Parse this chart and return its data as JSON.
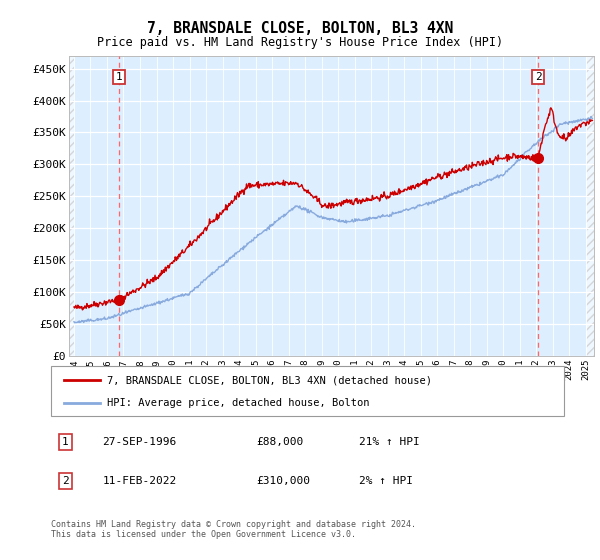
{
  "title": "7, BRANSDALE CLOSE, BOLTON, BL3 4XN",
  "subtitle": "Price paid vs. HM Land Registry's House Price Index (HPI)",
  "ylabel_ticks": [
    "£0",
    "£50K",
    "£100K",
    "£150K",
    "£200K",
    "£250K",
    "£300K",
    "£350K",
    "£400K",
    "£450K"
  ],
  "ytick_values": [
    0,
    50000,
    100000,
    150000,
    200000,
    250000,
    300000,
    350000,
    400000,
    450000
  ],
  "ylim": [
    0,
    470000
  ],
  "xlim_start": 1993.7,
  "xlim_end": 2025.5,
  "marker1_x": 1996.74,
  "marker1_y": 88000,
  "marker2_x": 2022.11,
  "marker2_y": 310000,
  "vline1_x": 1996.74,
  "vline2_x": 2022.11,
  "legend_line1": "7, BRANSDALE CLOSE, BOLTON, BL3 4XN (detached house)",
  "legend_line2": "HPI: Average price, detached house, Bolton",
  "footer": "Contains HM Land Registry data © Crown copyright and database right 2024.\nThis data is licensed under the Open Government Licence v3.0.",
  "red_color": "#cc0000",
  "blue_color": "#88aadd",
  "bg_color": "#ddeeff",
  "grid_color": "#ffffff",
  "vline_color": "#ff6666",
  "box_edge_color": "#cc3333"
}
